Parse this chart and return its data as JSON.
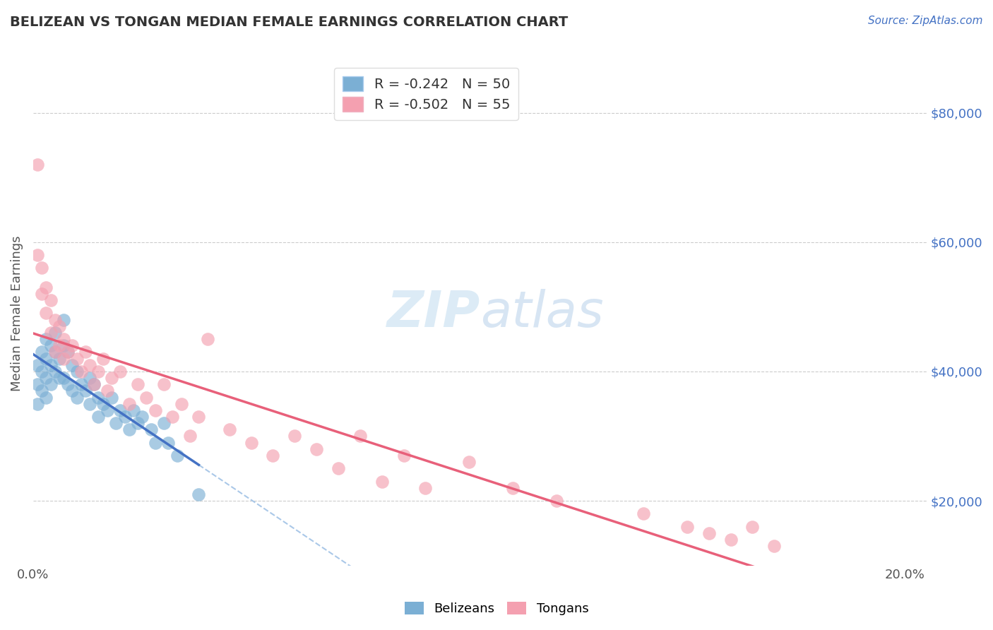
{
  "title": "BELIZEAN VS TONGAN MEDIAN FEMALE EARNINGS CORRELATION CHART",
  "source": "Source: ZipAtlas.com",
  "ylabel": "Median Female Earnings",
  "ylabel_right_ticks": [
    "$20,000",
    "$40,000",
    "$60,000",
    "$80,000"
  ],
  "ylabel_right_values": [
    20000,
    40000,
    60000,
    80000
  ],
  "xlim": [
    0.0,
    0.205
  ],
  "ylim": [
    10000,
    88000
  ],
  "belizean_color": "#7bafd4",
  "tongan_color": "#f4a0b0",
  "belizean_line_color": "#4472c4",
  "tongan_line_color": "#e8607a",
  "dashed_line_color": "#aac8e8",
  "belizean_r": -0.242,
  "belizean_n": 50,
  "tongan_r": -0.502,
  "tongan_n": 55,
  "belizean_x": [
    0.001,
    0.001,
    0.001,
    0.002,
    0.002,
    0.002,
    0.003,
    0.003,
    0.003,
    0.003,
    0.004,
    0.004,
    0.004,
    0.005,
    0.005,
    0.005,
    0.006,
    0.006,
    0.007,
    0.007,
    0.007,
    0.008,
    0.008,
    0.009,
    0.009,
    0.01,
    0.01,
    0.011,
    0.012,
    0.013,
    0.013,
    0.014,
    0.015,
    0.015,
    0.016,
    0.017,
    0.018,
    0.019,
    0.02,
    0.021,
    0.022,
    0.023,
    0.024,
    0.025,
    0.027,
    0.028,
    0.03,
    0.031,
    0.033,
    0.038
  ],
  "belizean_y": [
    41000,
    38000,
    35000,
    43000,
    40000,
    37000,
    45000,
    42000,
    39000,
    36000,
    44000,
    41000,
    38000,
    46000,
    43000,
    40000,
    42000,
    39000,
    48000,
    44000,
    39000,
    43000,
    38000,
    41000,
    37000,
    40000,
    36000,
    38000,
    37000,
    39000,
    35000,
    38000,
    36000,
    33000,
    35000,
    34000,
    36000,
    32000,
    34000,
    33000,
    31000,
    34000,
    32000,
    33000,
    31000,
    29000,
    32000,
    29000,
    27000,
    21000
  ],
  "tongan_x": [
    0.001,
    0.001,
    0.002,
    0.002,
    0.003,
    0.003,
    0.004,
    0.004,
    0.005,
    0.005,
    0.006,
    0.006,
    0.007,
    0.007,
    0.008,
    0.009,
    0.01,
    0.011,
    0.012,
    0.013,
    0.014,
    0.015,
    0.016,
    0.017,
    0.018,
    0.02,
    0.022,
    0.024,
    0.026,
    0.028,
    0.03,
    0.032,
    0.034,
    0.036,
    0.038,
    0.04,
    0.045,
    0.05,
    0.055,
    0.06,
    0.065,
    0.07,
    0.075,
    0.08,
    0.085,
    0.09,
    0.1,
    0.11,
    0.12,
    0.14,
    0.15,
    0.155,
    0.16,
    0.165,
    0.17
  ],
  "tongan_y": [
    72000,
    58000,
    56000,
    52000,
    53000,
    49000,
    51000,
    46000,
    48000,
    43000,
    47000,
    44000,
    42000,
    45000,
    43000,
    44000,
    42000,
    40000,
    43000,
    41000,
    38000,
    40000,
    42000,
    37000,
    39000,
    40000,
    35000,
    38000,
    36000,
    34000,
    38000,
    33000,
    35000,
    30000,
    33000,
    45000,
    31000,
    29000,
    27000,
    30000,
    28000,
    25000,
    30000,
    23000,
    27000,
    22000,
    26000,
    22000,
    20000,
    18000,
    16000,
    15000,
    14000,
    16000,
    13000
  ],
  "grid_color": "#cccccc",
  "background_color": "#ffffff",
  "legend_label_belizean": "Belizeans",
  "legend_label_tongan": "Tongans"
}
